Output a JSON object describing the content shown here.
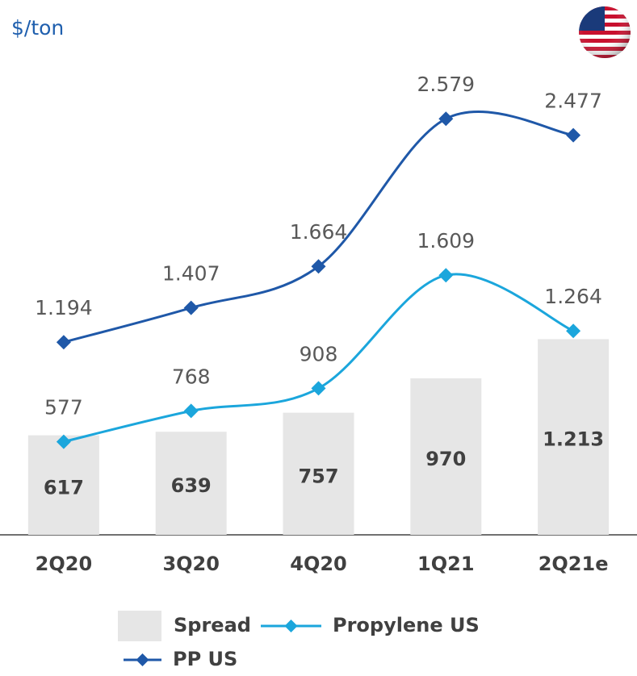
{
  "chart_data": {
    "type": "bar",
    "unit_label": "$/ton",
    "categories": [
      "2Q20",
      "3Q20",
      "4Q20",
      "1Q21",
      "2Q21e"
    ],
    "series": [
      {
        "name": "Spread",
        "type": "bar",
        "color": "#e6e6e6",
        "values": [
          617,
          639,
          757,
          970,
          1213
        ],
        "value_labels": [
          "617",
          "639",
          "757",
          "970",
          "1.213"
        ]
      },
      {
        "name": "Propylene US",
        "type": "line",
        "color": "#1ba6dc",
        "values": [
          577,
          768,
          908,
          1609,
          1264
        ],
        "value_labels": [
          "577",
          "768",
          "908",
          "1.609",
          "1.264"
        ]
      },
      {
        "name": "PP US",
        "type": "line",
        "color": "#1f58a8",
        "values": [
          1194,
          1407,
          1664,
          2579,
          2477
        ],
        "value_labels": [
          "1.194",
          "1.407",
          "1.664",
          "2.579",
          "2.477"
        ]
      }
    ],
    "ylim": [
      0,
      3000
    ],
    "grid": false
  }
}
